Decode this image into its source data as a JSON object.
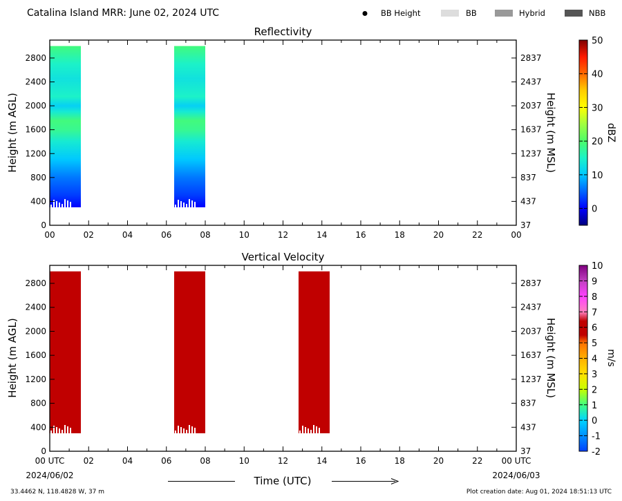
{
  "header": {
    "title": "Catalina Island MRR:  June 02, 2024 UTC",
    "legend": [
      {
        "label": "BB Height",
        "kind": "dot",
        "color": "#000000"
      },
      {
        "label": "BB",
        "kind": "patch",
        "color": "#dddddd"
      },
      {
        "label": "Hybrid",
        "kind": "patch",
        "color": "#999999"
      },
      {
        "label": "NBB",
        "kind": "patch",
        "color": "#555555"
      }
    ]
  },
  "chart_data": [
    {
      "type": "heatmap",
      "title": "Reflectivity",
      "ylabel": "Height (m AGL)",
      "ylabel_right": "Height (m MSL)",
      "xlim": [
        0,
        24
      ],
      "ylim": [
        0,
        3100
      ],
      "x_ticks": [
        "00",
        "02",
        "04",
        "06",
        "08",
        "10",
        "12",
        "14",
        "16",
        "18",
        "20",
        "22",
        "00"
      ],
      "y_ticks": [
        "0",
        "400",
        "800",
        "1200",
        "1600",
        "2000",
        "2400",
        "2800"
      ],
      "y_ticks_right": [
        "37",
        "437",
        "837",
        "1237",
        "1637",
        "2037",
        "2437",
        "2837"
      ],
      "colorbar": {
        "label": "dBZ",
        "min": -5,
        "max": 50,
        "ticks": [
          "0",
          "10",
          "20",
          "30",
          "40",
          "50"
        ]
      },
      "segments": [
        {
          "start": 0.0,
          "end": 1.6,
          "bottom": 300,
          "top": 3000
        },
        {
          "start": 6.4,
          "end": 8.0,
          "bottom": 300,
          "top": 3000
        }
      ],
      "profile": [
        {
          "h": 300,
          "dbz": 0
        },
        {
          "h": 500,
          "dbz": 3
        },
        {
          "h": 800,
          "dbz": 6
        },
        {
          "h": 1100,
          "dbz": 10
        },
        {
          "h": 1400,
          "dbz": 14
        },
        {
          "h": 1600,
          "dbz": 18
        },
        {
          "h": 1750,
          "dbz": 19
        },
        {
          "h": 1900,
          "dbz": 14
        },
        {
          "h": 2000,
          "dbz": 11
        },
        {
          "h": 2150,
          "dbz": 15
        },
        {
          "h": 2450,
          "dbz": 13
        },
        {
          "h": 2700,
          "dbz": 15
        },
        {
          "h": 3000,
          "dbz": 19
        }
      ]
    },
    {
      "type": "heatmap",
      "title": "Vertical Velocity",
      "ylabel": "Height (m AGL)",
      "ylabel_right": "Height (m MSL)",
      "xlim": [
        0,
        24
      ],
      "ylim": [
        0,
        3100
      ],
      "x_ticks": [
        "00 UTC",
        "02",
        "04",
        "06",
        "08",
        "10",
        "12",
        "14",
        "16",
        "18",
        "20",
        "22",
        "00 UTC"
      ],
      "x_date_left": "2024/06/02",
      "x_date_right": "2024/06/03",
      "y_ticks": [
        "0",
        "400",
        "800",
        "1200",
        "1600",
        "2000",
        "2400",
        "2800"
      ],
      "y_ticks_right": [
        "37",
        "437",
        "837",
        "1237",
        "1637",
        "2037",
        "2437",
        "2837"
      ],
      "colorbar": {
        "label": "m/s",
        "min": -2,
        "max": 10,
        "ticks": [
          "-2",
          "-1",
          "0",
          "1",
          "2",
          "3",
          "4",
          "5",
          "6",
          "7",
          "8",
          "9",
          "10"
        ]
      },
      "segments": [
        {
          "start": 0.0,
          "end": 1.6,
          "bottom": 300,
          "top": 3000,
          "value": 6
        },
        {
          "start": 6.4,
          "end": 8.0,
          "bottom": 300,
          "top": 3000,
          "value": 6
        },
        {
          "start": 12.8,
          "end": 14.4,
          "bottom": 300,
          "top": 3000,
          "value": 6
        }
      ]
    }
  ],
  "footer": {
    "xlabel": "Time (UTC)",
    "location": "33.4462 N, 118.4828 W, 37 m",
    "created": "Plot creation date: Aug 01, 2024 18:51:13 UTC"
  }
}
